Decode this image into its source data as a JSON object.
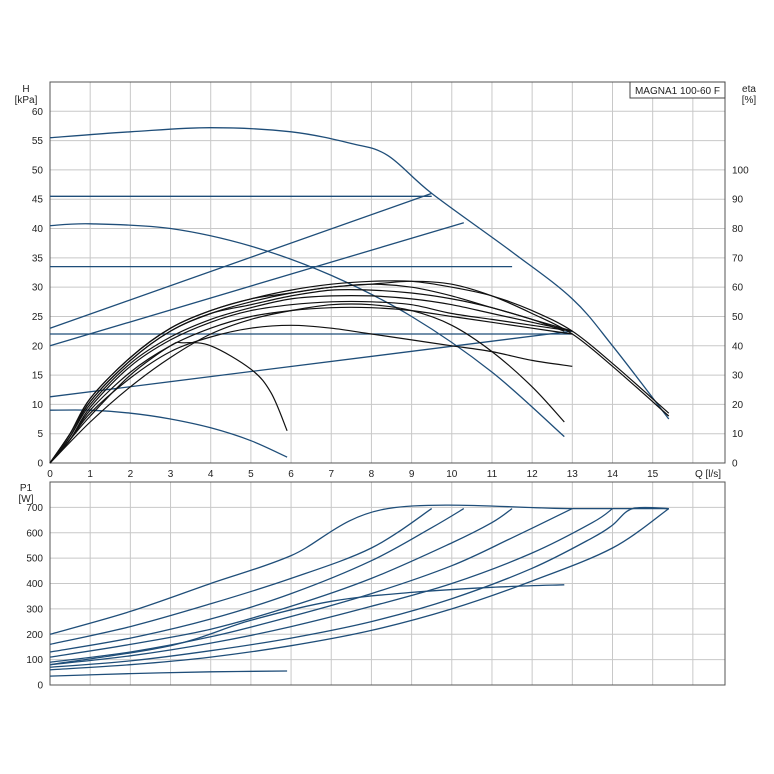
{
  "chart_data": [
    {
      "type": "line",
      "id": "hq",
      "model_label": "MAGNA1 100-60 F",
      "ylabel_top": "H",
      "ylabel_unit": "[kPa]",
      "y2label_top": "eta",
      "y2label_unit": "[%]",
      "xlabel": "Q [l/s]",
      "xlim": [
        0,
        16.8
      ],
      "ylim": [
        0,
        65
      ],
      "y2lim": [
        0,
        130
      ],
      "x_ticks": [
        "0",
        "1",
        "2",
        "3",
        "4",
        "5",
        "6",
        "7",
        "8",
        "9",
        "10",
        "11",
        "12",
        "13",
        "14",
        "15"
      ],
      "y_ticks": [
        "0",
        "5",
        "10",
        "15",
        "20",
        "25",
        "30",
        "35",
        "40",
        "45",
        "50",
        "55",
        "60"
      ],
      "y2_ticks": [
        "0",
        "10",
        "20",
        "30",
        "40",
        "50",
        "60",
        "70",
        "80",
        "90",
        "100"
      ],
      "grid": true,
      "hq_curves": [
        {
          "points": [
            [
              0,
              55.5
            ],
            [
              2,
              56.5
            ],
            [
              4,
              57.2
            ],
            [
              6,
              56.5
            ],
            [
              7.5,
              54.5
            ],
            [
              8.4,
              52.5
            ],
            [
              9.5,
              46
            ],
            [
              11.5,
              36
            ],
            [
              13,
              28
            ],
            [
              14,
              20
            ],
            [
              15.4,
              7.5
            ]
          ]
        },
        {
          "points": [
            [
              0,
              45.5
            ],
            [
              9.5,
              45.5
            ]
          ]
        },
        {
          "points": [
            [
              0,
              33.5
            ],
            [
              11.5,
              33.5
            ]
          ]
        },
        {
          "points": [
            [
              0,
              22
            ],
            [
              13,
              22
            ]
          ]
        },
        {
          "points": [
            [
              0,
              23
            ],
            [
              9.5,
              46
            ]
          ]
        },
        {
          "points": [
            [
              0,
              20
            ],
            [
              10.3,
              41
            ]
          ]
        },
        {
          "points": [
            [
              0,
              11.3
            ],
            [
              13,
              22.5
            ]
          ]
        },
        {
          "points": [
            [
              0,
              40.5
            ],
            [
              1,
              40.8
            ],
            [
              3,
              40
            ],
            [
              5,
              37
            ],
            [
              7,
              32
            ],
            [
              9,
              25
            ],
            [
              11,
              15.5
            ],
            [
              12.8,
              4.5
            ]
          ]
        },
        {
          "points": [
            [
              0,
              9
            ],
            [
              1,
              9
            ],
            [
              2,
              8.5
            ],
            [
              3,
              7.5
            ],
            [
              4,
              6
            ],
            [
              5,
              3.8
            ],
            [
              5.9,
              1
            ]
          ]
        }
      ],
      "eta_curves": [
        {
          "points": [
            [
              0,
              0
            ],
            [
              0.5,
              10
            ],
            [
              1,
              22
            ],
            [
              2,
              36
            ],
            [
              3,
              46
            ],
            [
              4,
              52
            ],
            [
              5,
              56
            ],
            [
              6,
              59
            ],
            [
              7,
              61
            ],
            [
              8,
              62
            ],
            [
              9,
              62
            ],
            [
              10,
              60
            ],
            [
              11,
              57
            ],
            [
              12,
              52
            ],
            [
              13,
              45
            ],
            [
              14,
              34
            ],
            [
              15.4,
              17
            ]
          ]
        },
        {
          "points": [
            [
              0,
              0
            ],
            [
              0.5,
              10
            ],
            [
              1,
              22
            ],
            [
              2,
              36
            ],
            [
              3,
              46
            ],
            [
              4,
              52
            ],
            [
              5,
              56
            ],
            [
              6,
              58
            ],
            [
              7,
              60
            ],
            [
              8,
              61
            ],
            [
              9,
              60
            ],
            [
              10,
              57
            ],
            [
              11,
              53
            ],
            [
              12,
              49
            ],
            [
              12.8,
              45
            ]
          ]
        },
        {
          "points": [
            [
              0,
              0
            ],
            [
              0.5,
              9
            ],
            [
              1,
              21
            ],
            [
              2,
              35
            ],
            [
              3,
              45
            ],
            [
              4,
              51
            ],
            [
              5,
              55
            ],
            [
              6,
              58
            ],
            [
              7,
              60
            ],
            [
              8,
              61
            ],
            [
              9,
              62
            ],
            [
              10,
              61
            ],
            [
              11,
              57
            ],
            [
              12,
              51
            ],
            [
              13,
              44
            ],
            [
              14,
              33
            ],
            [
              15.4,
              16
            ]
          ]
        },
        {
          "points": [
            [
              0,
              0
            ],
            [
              0.5,
              10
            ],
            [
              1,
              21
            ],
            [
              2,
              35
            ],
            [
              3,
              45
            ],
            [
              4,
              51
            ],
            [
              5,
              54
            ],
            [
              6,
              57
            ],
            [
              7,
              59
            ],
            [
              8,
              59
            ],
            [
              9,
              58
            ],
            [
              10,
              56
            ],
            [
              11,
              53
            ],
            [
              12,
              49
            ],
            [
              13,
              45
            ]
          ]
        },
        {
          "points": [
            [
              0,
              0
            ],
            [
              0.5,
              9
            ],
            [
              1,
              20
            ],
            [
              2,
              34
            ],
            [
              3,
              43
            ],
            [
              4,
              49
            ],
            [
              5,
              53
            ],
            [
              6,
              56
            ],
            [
              7,
              57
            ],
            [
              8,
              57
            ],
            [
              9,
              56
            ],
            [
              10,
              54
            ],
            [
              11,
              51
            ],
            [
              12,
              48
            ],
            [
              13,
              45
            ]
          ]
        },
        {
          "points": [
            [
              0,
              0
            ],
            [
              0.5,
              8
            ],
            [
              1,
              19
            ],
            [
              2,
              33
            ],
            [
              3,
              42
            ],
            [
              4,
              48
            ],
            [
              5,
              52
            ],
            [
              6,
              54
            ],
            [
              7,
              55
            ],
            [
              8,
              55
            ],
            [
              9,
              54
            ],
            [
              10,
              51
            ],
            [
              11,
              49
            ],
            [
              12,
              47
            ],
            [
              13,
              45
            ]
          ]
        },
        {
          "points": [
            [
              0,
              0
            ],
            [
              0.5,
              8
            ],
            [
              1,
              18
            ],
            [
              2,
              31
            ],
            [
              3,
              40
            ],
            [
              4,
              46
            ],
            [
              5,
              50
            ],
            [
              6,
              52
            ],
            [
              7,
              53
            ],
            [
              8,
              53
            ],
            [
              9,
              52
            ],
            [
              10,
              50
            ],
            [
              11,
              48
            ],
            [
              12,
              46
            ],
            [
              13,
              44
            ]
          ]
        },
        {
          "points": [
            [
              0,
              0
            ],
            [
              0.5,
              8
            ],
            [
              1,
              17
            ],
            [
              2,
              29
            ],
            [
              3,
              38
            ],
            [
              4,
              43
            ],
            [
              5,
              46
            ],
            [
              6,
              47
            ],
            [
              7,
              46
            ],
            [
              8,
              44
            ],
            [
              9,
              42
            ],
            [
              10,
              40
            ],
            [
              11,
              38
            ],
            [
              12,
              35
            ],
            [
              13,
              33
            ]
          ]
        },
        {
          "points": [
            [
              0,
              0
            ],
            [
              1,
              14
            ],
            [
              2,
              26
            ],
            [
              3,
              36
            ],
            [
              4,
              44
            ],
            [
              5,
              49
            ],
            [
              6,
              52
            ],
            [
              7,
              54
            ],
            [
              8,
              54
            ],
            [
              9,
              52
            ],
            [
              10,
              47
            ],
            [
              11,
              38
            ],
            [
              12,
              26
            ],
            [
              12.8,
              14
            ]
          ]
        },
        {
          "points": [
            [
              0,
              0
            ],
            [
              0.5,
              8
            ],
            [
              1,
              16
            ],
            [
              2,
              30
            ],
            [
              3,
              40
            ],
            [
              3.3,
              41
            ],
            [
              4,
              40
            ],
            [
              5,
              32
            ],
            [
              5.5,
              24
            ],
            [
              5.9,
              11
            ]
          ]
        }
      ]
    },
    {
      "type": "line",
      "id": "p1",
      "ylabel_top": "P1",
      "ylabel_unit": "[W]",
      "xlim": [
        0,
        16.8
      ],
      "ylim": [
        0,
        800
      ],
      "y_ticks": [
        "0",
        "100",
        "200",
        "300",
        "400",
        "500",
        "600",
        "700"
      ],
      "grid": true,
      "p1_curves": [
        {
          "points": [
            [
              0,
              200
            ],
            [
              2,
              290
            ],
            [
              4,
              400
            ],
            [
              6,
              510
            ],
            [
              8.4,
              695
            ],
            [
              13,
              695
            ],
            [
              15.4,
              695
            ]
          ]
        },
        {
          "points": [
            [
              0,
              160
            ],
            [
              2,
              230
            ],
            [
              4,
              320
            ],
            [
              6,
              420
            ],
            [
              8,
              540
            ],
            [
              9.5,
              695
            ]
          ]
        },
        {
          "points": [
            [
              0,
              130
            ],
            [
              2,
              185
            ],
            [
              4,
              260
            ],
            [
              6,
              360
            ],
            [
              8,
              490
            ],
            [
              9.5,
              620
            ],
            [
              10.3,
              695
            ]
          ]
        },
        {
          "points": [
            [
              0,
              110
            ],
            [
              2,
              160
            ],
            [
              4,
              220
            ],
            [
              6,
              310
            ],
            [
              8,
              420
            ],
            [
              10,
              560
            ],
            [
              11,
              640
            ],
            [
              11.5,
              695
            ]
          ]
        },
        {
          "points": [
            [
              0,
              90
            ],
            [
              2,
              130
            ],
            [
              4,
              190
            ],
            [
              6,
              270
            ],
            [
              8,
              360
            ],
            [
              10,
              470
            ],
            [
              11.5,
              580
            ],
            [
              13,
              695
            ]
          ]
        },
        {
          "points": [
            [
              0,
              80
            ],
            [
              2,
              115
            ],
            [
              4,
              165
            ],
            [
              6,
              230
            ],
            [
              8,
              310
            ],
            [
              10,
              400
            ],
            [
              12,
              520
            ],
            [
              13.5,
              640
            ],
            [
              14,
              695
            ]
          ]
        },
        {
          "points": [
            [
              0,
              70
            ],
            [
              2,
              95
            ],
            [
              4,
              135
            ],
            [
              6,
              185
            ],
            [
              8,
              250
            ],
            [
              10,
              340
            ],
            [
              12,
              460
            ],
            [
              13.5,
              580
            ],
            [
              14,
              630
            ],
            [
              14.5,
              695
            ],
            [
              15.4,
              695
            ]
          ]
        },
        {
          "points": [
            [
              0,
              60
            ],
            [
              2,
              80
            ],
            [
              4,
              110
            ],
            [
              6,
              155
            ],
            [
              8,
              215
            ],
            [
              10,
              300
            ],
            [
              12,
              410
            ],
            [
              14,
              540
            ],
            [
              15.4,
              695
            ]
          ]
        },
        {
          "points": [
            [
              0,
              80
            ],
            [
              3,
              155
            ],
            [
              5,
              255
            ],
            [
              7,
              330
            ],
            [
              9,
              365
            ],
            [
              11,
              385
            ],
            [
              12.8,
              395
            ]
          ]
        },
        {
          "points": [
            [
              0,
              35
            ],
            [
              2,
              45
            ],
            [
              4,
              52
            ],
            [
              5.9,
              55
            ]
          ]
        }
      ]
    }
  ]
}
